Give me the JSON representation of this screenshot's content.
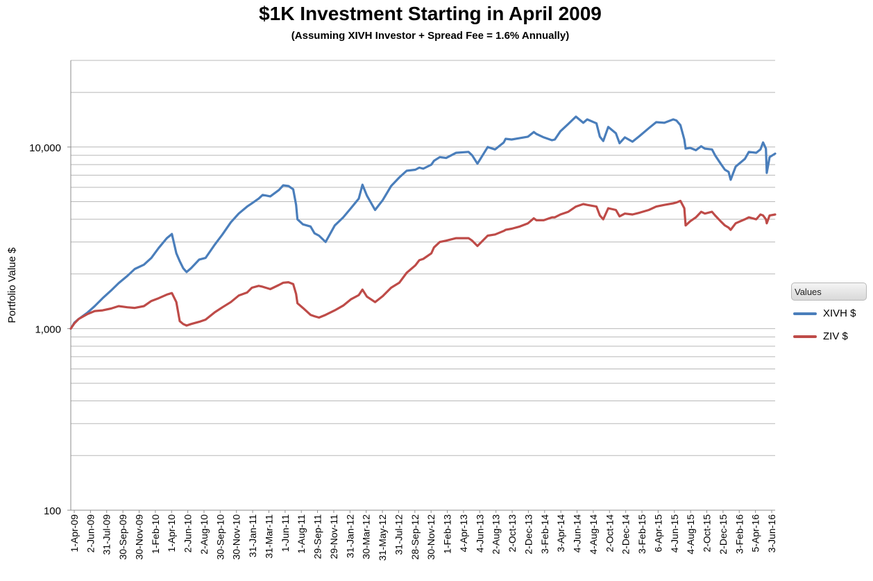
{
  "chart_data": {
    "type": "line",
    "title": "$1K Investment Starting in April 2009",
    "subtitle": "(Assuming XIVH Investor + Spread Fee = 1.6% Annually)",
    "ylabel": "Portfolio Value $",
    "xlabel": "",
    "yscale": "log",
    "ylim": [
      100,
      30000
    ],
    "y_ticks": [
      {
        "value": 100,
        "label": "100"
      },
      {
        "value": 1000,
        "label": "1,000"
      },
      {
        "value": 10000,
        "label": "10,000"
      }
    ],
    "grid": true,
    "legend": {
      "title": "Values",
      "position": "right"
    },
    "x_start": "2009-04-01",
    "x_end": "2016-07-29",
    "x_ticks": [
      "1-Apr-09",
      "2-Jun-09",
      "31-Jul-09",
      "30-Sep-09",
      "30-Nov-09",
      "1-Feb-10",
      "1-Apr-10",
      "2-Jun-10",
      "2-Aug-10",
      "30-Sep-10",
      "30-Nov-10",
      "31-Jan-11",
      "31-Mar-11",
      "1-Jun-11",
      "1-Aug-11",
      "29-Sep-11",
      "29-Nov-11",
      "31-Jan-12",
      "30-Mar-12",
      "31-May-12",
      "31-Jul-12",
      "28-Sep-12",
      "30-Nov-12",
      "1-Feb-13",
      "4-Apr-13",
      "4-Jun-13",
      "2-Aug-13",
      "2-Oct-13",
      "2-Dec-13",
      "3-Feb-14",
      "3-Apr-14",
      "4-Jun-14",
      "4-Aug-14",
      "2-Oct-14",
      "2-Dec-14",
      "3-Feb-15",
      "6-Apr-15",
      "4-Jun-15",
      "4-Aug-15",
      "2-Oct-15",
      "2-Dec-15",
      "3-Feb-16",
      "5-Apr-16",
      "3-Jun-16"
    ],
    "series": [
      {
        "name": "XIVH $",
        "color": "#4a7ebb",
        "x": [
          "2009-04-01",
          "2009-04-15",
          "2009-05-01",
          "2009-06-02",
          "2009-07-01",
          "2009-07-31",
          "2009-09-01",
          "2009-09-30",
          "2009-11-02",
          "2009-11-30",
          "2010-01-04",
          "2010-02-01",
          "2010-03-01",
          "2010-04-01",
          "2010-04-20",
          "2010-05-07",
          "2010-05-20",
          "2010-06-02",
          "2010-06-15",
          "2010-07-02",
          "2010-08-02",
          "2010-08-26",
          "2010-09-30",
          "2010-10-29",
          "2010-11-30",
          "2010-12-30",
          "2011-01-31",
          "2011-02-18",
          "2011-03-16",
          "2011-03-31",
          "2011-04-29",
          "2011-06-01",
          "2011-06-17",
          "2011-07-07",
          "2011-07-25",
          "2011-08-05",
          "2011-08-10",
          "2011-08-31",
          "2011-09-29",
          "2011-10-14",
          "2011-10-31",
          "2011-11-25",
          "2011-12-30",
          "2012-01-31",
          "2012-02-29",
          "2012-03-30",
          "2012-04-13",
          "2012-04-30",
          "2012-05-31",
          "2012-06-29",
          "2012-07-31",
          "2012-08-31",
          "2012-09-28",
          "2012-10-31",
          "2012-11-15",
          "2012-11-30",
          "2012-12-31",
          "2013-01-10",
          "2013-02-01",
          "2013-02-25",
          "2013-04-04",
          "2013-05-21",
          "2013-06-04",
          "2013-06-24",
          "2013-08-02",
          "2013-08-30",
          "2013-10-02",
          "2013-10-09",
          "2013-11-01",
          "2013-12-02",
          "2014-01-02",
          "2014-01-24",
          "2014-02-03",
          "2014-03-03",
          "2014-04-03",
          "2014-04-14",
          "2014-05-05",
          "2014-06-04",
          "2014-07-03",
          "2014-07-31",
          "2014-08-15",
          "2014-09-19",
          "2014-10-02",
          "2014-10-15",
          "2014-11-03",
          "2014-12-02",
          "2014-12-16",
          "2015-01-05",
          "2015-02-03",
          "2015-03-02",
          "2015-04-06",
          "2015-05-04",
          "2015-06-04",
          "2015-07-08",
          "2015-07-20",
          "2015-08-04",
          "2015-08-19",
          "2015-08-24",
          "2015-09-10",
          "2015-10-02",
          "2015-10-22",
          "2015-11-05",
          "2015-12-02",
          "2015-12-14",
          "2016-01-04",
          "2016-01-20",
          "2016-02-03",
          "2016-02-11",
          "2016-03-01",
          "2016-04-05",
          "2016-04-20",
          "2016-05-18",
          "2016-06-03",
          "2016-06-13",
          "2016-06-24",
          "2016-06-27",
          "2016-07-08",
          "2016-07-29"
        ],
        "values": [
          1000,
          1080,
          1130,
          1220,
          1330,
          1470,
          1620,
          1780,
          1950,
          2130,
          2250,
          2450,
          2780,
          3150,
          3320,
          2600,
          2350,
          2150,
          2050,
          2150,
          2400,
          2450,
          2900,
          3300,
          3850,
          4300,
          4700,
          4900,
          5200,
          5450,
          5350,
          5800,
          6150,
          6100,
          5850,
          4800,
          4000,
          3750,
          3650,
          3350,
          3250,
          3000,
          3700,
          4100,
          4600,
          5200,
          6200,
          5400,
          4500,
          5100,
          6100,
          6800,
          7400,
          7500,
          7700,
          7600,
          8000,
          8400,
          8800,
          8700,
          9300,
          9400,
          9000,
          8100,
          10000,
          9700,
          10600,
          11100,
          11000,
          11200,
          11400,
          12100,
          11800,
          11300,
          10900,
          11000,
          12200,
          13400,
          14700,
          13600,
          14200,
          13500,
          11400,
          10800,
          12900,
          11900,
          10500,
          11300,
          10700,
          11500,
          12700,
          13700,
          13600,
          14200,
          14000,
          13200,
          11000,
          9800,
          9900,
          9600,
          10100,
          9800,
          9700,
          9000,
          8100,
          7500,
          7300,
          6600,
          7800,
          8600,
          9400,
          9300,
          9700,
          10600,
          9800,
          7200,
          8800,
          9200
        ]
      },
      {
        "name": "ZIV $",
        "color": "#be4b48",
        "x": [
          "2009-04-01",
          "2009-04-15",
          "2009-05-01",
          "2009-06-02",
          "2009-07-01",
          "2009-07-31",
          "2009-09-01",
          "2009-09-30",
          "2009-11-02",
          "2009-11-30",
          "2010-01-04",
          "2010-02-01",
          "2010-03-01",
          "2010-04-01",
          "2010-04-20",
          "2010-05-07",
          "2010-05-20",
          "2010-06-02",
          "2010-06-15",
          "2010-07-02",
          "2010-08-02",
          "2010-08-26",
          "2010-09-30",
          "2010-10-29",
          "2010-11-30",
          "2010-12-30",
          "2011-01-31",
          "2011-02-18",
          "2011-03-16",
          "2011-03-31",
          "2011-04-29",
          "2011-06-01",
          "2011-06-17",
          "2011-07-07",
          "2011-07-25",
          "2011-08-05",
          "2011-08-10",
          "2011-08-31",
          "2011-09-29",
          "2011-10-14",
          "2011-10-31",
          "2011-11-25",
          "2011-12-30",
          "2012-01-31",
          "2012-02-29",
          "2012-03-30",
          "2012-04-13",
          "2012-04-30",
          "2012-05-31",
          "2012-06-29",
          "2012-07-31",
          "2012-08-31",
          "2012-09-28",
          "2012-10-31",
          "2012-11-15",
          "2012-11-30",
          "2012-12-31",
          "2013-01-10",
          "2013-02-01",
          "2013-02-25",
          "2013-04-04",
          "2013-05-21",
          "2013-06-04",
          "2013-06-24",
          "2013-08-02",
          "2013-08-30",
          "2013-10-02",
          "2013-10-09",
          "2013-11-01",
          "2013-12-02",
          "2014-01-02",
          "2014-01-24",
          "2014-02-03",
          "2014-03-03",
          "2014-04-03",
          "2014-04-14",
          "2014-05-05",
          "2014-06-04",
          "2014-07-03",
          "2014-07-31",
          "2014-08-15",
          "2014-09-19",
          "2014-10-02",
          "2014-10-15",
          "2014-11-03",
          "2014-12-02",
          "2014-12-16",
          "2015-01-05",
          "2015-02-03",
          "2015-03-02",
          "2015-04-06",
          "2015-05-04",
          "2015-06-04",
          "2015-07-08",
          "2015-07-20",
          "2015-08-04",
          "2015-08-19",
          "2015-08-24",
          "2015-09-10",
          "2015-10-02",
          "2015-10-22",
          "2015-11-05",
          "2015-12-02",
          "2015-12-14",
          "2016-01-04",
          "2016-01-20",
          "2016-02-03",
          "2016-02-11",
          "2016-03-01",
          "2016-04-05",
          "2016-04-20",
          "2016-05-18",
          "2016-06-03",
          "2016-06-13",
          "2016-06-24",
          "2016-06-27",
          "2016-07-08",
          "2016-07-29"
        ],
        "values": [
          1000,
          1070,
          1130,
          1200,
          1250,
          1260,
          1290,
          1330,
          1310,
          1300,
          1330,
          1420,
          1470,
          1540,
          1570,
          1400,
          1100,
          1060,
          1040,
          1060,
          1090,
          1120,
          1230,
          1310,
          1400,
          1520,
          1580,
          1680,
          1720,
          1700,
          1650,
          1740,
          1790,
          1800,
          1760,
          1550,
          1380,
          1300,
          1190,
          1170,
          1150,
          1190,
          1260,
          1340,
          1450,
          1530,
          1640,
          1500,
          1400,
          1510,
          1680,
          1790,
          2030,
          2230,
          2380,
          2420,
          2600,
          2800,
          3000,
          3050,
          3150,
          3150,
          3050,
          2850,
          3250,
          3300,
          3450,
          3500,
          3550,
          3650,
          3800,
          4050,
          3950,
          3950,
          4100,
          4100,
          4250,
          4400,
          4700,
          4850,
          4800,
          4700,
          4200,
          4000,
          4600,
          4500,
          4150,
          4300,
          4250,
          4350,
          4500,
          4700,
          4800,
          4900,
          4950,
          5050,
          4600,
          3700,
          3900,
          4100,
          4400,
          4300,
          4400,
          4200,
          3900,
          3700,
          3600,
          3500,
          3800,
          4000,
          4100,
          4000,
          4250,
          4200,
          4000,
          3800,
          4200,
          4250
        ]
      }
    ]
  }
}
